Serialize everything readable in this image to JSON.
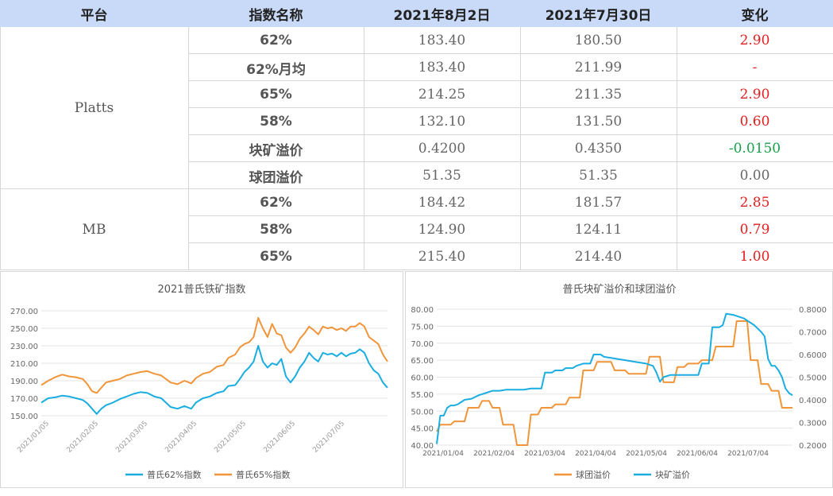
{
  "table": {
    "headers": [
      "平台",
      "指数名称",
      "2021年8月2日",
      "2021年7月30日",
      "变化"
    ],
    "groups": [
      {
        "platform": "Platts",
        "rows": [
          {
            "name": "62%",
            "d1": "183.40",
            "d2": "180.50",
            "change": "2.90",
            "trend": "pos"
          },
          {
            "name": "62%月均",
            "d1": "183.40",
            "d2": "211.99",
            "change": "-",
            "trend": "pos"
          },
          {
            "name": "65%",
            "d1": "214.25",
            "d2": "211.35",
            "change": "2.90",
            "trend": "pos"
          },
          {
            "name": "58%",
            "d1": "132.10",
            "d2": "131.50",
            "change": "0.60",
            "trend": "pos"
          },
          {
            "name": "块矿溢价",
            "d1": "0.4200",
            "d2": "0.4350",
            "change": "-0.0150",
            "trend": "neg"
          },
          {
            "name": "球团溢价",
            "d1": "51.35",
            "d2": "51.35",
            "change": "0.00",
            "trend": "zero"
          }
        ]
      },
      {
        "platform": "MB",
        "rows": [
          {
            "name": "62%",
            "d1": "184.42",
            "d2": "181.57",
            "change": "2.85",
            "trend": "pos"
          },
          {
            "name": "58%",
            "d1": "124.90",
            "d2": "124.11",
            "change": "0.79",
            "trend": "pos"
          },
          {
            "name": "65%",
            "d1": "215.40",
            "d2": "214.40",
            "change": "1.00",
            "trend": "pos"
          }
        ]
      }
    ]
  },
  "colors": {
    "blue": "#1aaee0",
    "orange": "#f0953a",
    "pos": "#e02020",
    "neg": "#16a04a",
    "header_bg": "#c9daf8"
  },
  "chart_data": [
    {
      "type": "line",
      "title": "2021普氏铁矿指数",
      "x_ticks": [
        "2021/01/05",
        "2021/02/05",
        "2021/03/05",
        "2021/04/05",
        "2021/05/05",
        "2021/06/05",
        "2021/07/05"
      ],
      "ylim": [
        150,
        270
      ],
      "y_ticks": [
        "150.00",
        "170.00",
        "190.00",
        "210.00",
        "230.00",
        "250.00",
        "270.00"
      ],
      "grid": true,
      "legend": "bottom",
      "series": [
        {
          "name": "普氏62%指数",
          "color": "#1aaee0",
          "points": [
            [
              0,
              165
            ],
            [
              3,
              170
            ],
            [
              6,
              171
            ],
            [
              9,
              173
            ],
            [
              12,
              172
            ],
            [
              15,
              170
            ],
            [
              18,
              168
            ],
            [
              20,
              164
            ],
            [
              22,
              158
            ],
            [
              24,
              152
            ],
            [
              26,
              158
            ],
            [
              28,
              162
            ],
            [
              31,
              165
            ],
            [
              34,
              169
            ],
            [
              37,
              172
            ],
            [
              40,
              175
            ],
            [
              43,
              177
            ],
            [
              46,
              176
            ],
            [
              49,
              172
            ],
            [
              52,
              170
            ],
            [
              54,
              165
            ],
            [
              56,
              160
            ],
            [
              59,
              158
            ],
            [
              62,
              161
            ],
            [
              65,
              158
            ],
            [
              67,
              165
            ],
            [
              70,
              170
            ],
            [
              73,
              172
            ],
            [
              76,
              176
            ],
            [
              79,
              178
            ],
            [
              81,
              184
            ],
            [
              84,
              185
            ],
            [
              86,
              192
            ],
            [
              88,
              200
            ],
            [
              90,
              205
            ],
            [
              92,
              212
            ],
            [
              94,
              230
            ],
            [
              96,
              212
            ],
            [
              98,
              205
            ],
            [
              100,
              210
            ],
            [
              102,
              208
            ],
            [
              104,
              215
            ],
            [
              106,
              195
            ],
            [
              108,
              188
            ],
            [
              110,
              195
            ],
            [
              112,
              205
            ],
            [
              114,
              212
            ],
            [
              116,
              222
            ],
            [
              118,
              216
            ],
            [
              120,
              212
            ],
            [
              122,
              222
            ],
            [
              124,
              220
            ],
            [
              126,
              221
            ],
            [
              128,
              218
            ],
            [
              130,
              222
            ],
            [
              132,
              218
            ],
            [
              134,
              221
            ],
            [
              136,
              222
            ],
            [
              138,
              226
            ],
            [
              140,
              222
            ],
            [
              142,
              210
            ],
            [
              144,
              202
            ],
            [
              146,
              198
            ],
            [
              148,
              188
            ],
            [
              150,
              182
            ]
          ]
        },
        {
          "name": "普氏65%指数",
          "color": "#f0953a",
          "points": [
            [
              0,
              185
            ],
            [
              3,
              190
            ],
            [
              6,
              194
            ],
            [
              9,
              197
            ],
            [
              12,
              195
            ],
            [
              15,
              194
            ],
            [
              18,
              192
            ],
            [
              20,
              186
            ],
            [
              22,
              178
            ],
            [
              24,
              176
            ],
            [
              26,
              182
            ],
            [
              28,
              188
            ],
            [
              31,
              190
            ],
            [
              34,
              192
            ],
            [
              37,
              196
            ],
            [
              40,
              198
            ],
            [
              43,
              200
            ],
            [
              46,
              201
            ],
            [
              49,
              198
            ],
            [
              52,
              196
            ],
            [
              54,
              192
            ],
            [
              56,
              188
            ],
            [
              59,
              186
            ],
            [
              62,
              190
            ],
            [
              65,
              187
            ],
            [
              67,
              193
            ],
            [
              70,
              198
            ],
            [
              73,
              200
            ],
            [
              76,
              206
            ],
            [
              79,
              208
            ],
            [
              81,
              216
            ],
            [
              84,
              220
            ],
            [
              86,
              228
            ],
            [
              88,
              232
            ],
            [
              90,
              234
            ],
            [
              92,
              240
            ],
            [
              94,
              262
            ],
            [
              96,
              250
            ],
            [
              98,
              240
            ],
            [
              100,
              255
            ],
            [
              102,
              244
            ],
            [
              104,
              242
            ],
            [
              106,
              228
            ],
            [
              108,
              222
            ],
            [
              110,
              228
            ],
            [
              112,
              238
            ],
            [
              114,
              244
            ],
            [
              116,
              252
            ],
            [
              118,
              248
            ],
            [
              120,
              243
            ],
            [
              122,
              252
            ],
            [
              124,
              250
            ],
            [
              126,
              251
            ],
            [
              128,
              248
            ],
            [
              130,
              250
            ],
            [
              132,
              247
            ],
            [
              134,
              252
            ],
            [
              136,
              252
            ],
            [
              138,
              256
            ],
            [
              140,
              252
            ],
            [
              142,
              240
            ],
            [
              144,
              236
            ],
            [
              146,
              232
            ],
            [
              148,
              220
            ],
            [
              150,
              212
            ]
          ]
        }
      ]
    },
    {
      "type": "line",
      "title": "普氏块矿溢价和球团溢价",
      "x_ticks": [
        "2021/01/04",
        "2021/02/04",
        "2021/03/04",
        "2021/04/04",
        "2021/05/04",
        "2021/06/04",
        "2021/07/04"
      ],
      "ylim_left": [
        40,
        80
      ],
      "y_ticks_left": [
        "40.00",
        "45.00",
        "50.00",
        "55.00",
        "60.00",
        "65.00",
        "70.00",
        "75.00",
        "80.00"
      ],
      "ylim_right": [
        0.2,
        0.8
      ],
      "y_ticks_right": [
        "0.2000",
        "0.3000",
        "0.4000",
        "0.5000",
        "0.6000",
        "0.7000",
        "0.8000"
      ],
      "grid": true,
      "legend": "bottom",
      "series": [
        {
          "name": "球团溢价",
          "axis": "left",
          "color": "#f0953a",
          "points": [
            [
              0,
              44
            ],
            [
              1,
              46
            ],
            [
              4,
              46
            ],
            [
              5,
              47
            ],
            [
              8,
              47
            ],
            [
              9,
              51
            ],
            [
              12,
              51
            ],
            [
              13,
              53
            ],
            [
              15,
              53
            ],
            [
              16,
              51
            ],
            [
              18,
              51
            ],
            [
              19,
              46
            ],
            [
              22,
              46
            ],
            [
              23,
              40
            ],
            [
              26,
              40
            ],
            [
              27,
              49
            ],
            [
              29,
              49
            ],
            [
              30,
              51
            ],
            [
              33,
              51
            ],
            [
              34,
              52
            ],
            [
              37,
              52
            ],
            [
              38,
              54
            ],
            [
              41,
              54
            ],
            [
              42,
              62
            ],
            [
              45,
              62
            ],
            [
              46,
              64.5
            ],
            [
              50,
              64.5
            ],
            [
              51,
              62
            ],
            [
              54,
              62
            ],
            [
              55,
              61
            ],
            [
              60,
              61
            ],
            [
              61,
              66
            ],
            [
              64,
              66
            ],
            [
              65,
              58.5
            ],
            [
              68,
              58.5
            ],
            [
              69,
              63
            ],
            [
              71,
              63
            ],
            [
              72,
              64
            ],
            [
              75,
              64
            ],
            [
              76,
              65
            ],
            [
              79,
              65
            ],
            [
              80,
              69
            ],
            [
              85,
              69
            ],
            [
              86,
              76.5
            ],
            [
              89,
              76.5
            ],
            [
              90,
              65
            ],
            [
              92,
              65
            ],
            [
              93,
              58
            ],
            [
              95,
              58
            ],
            [
              96,
              56
            ],
            [
              98,
              56
            ],
            [
              99,
              51
            ],
            [
              102,
              51
            ]
          ]
        },
        {
          "name": "块矿溢价",
          "axis": "right",
          "color": "#1aaee0",
          "points": [
            [
              0,
              0.205
            ],
            [
              1,
              0.33
            ],
            [
              2,
              0.33
            ],
            [
              3,
              0.365
            ],
            [
              4,
              0.375
            ],
            [
              5,
              0.375
            ],
            [
              6,
              0.38
            ],
            [
              7,
              0.39
            ],
            [
              8,
              0.4
            ],
            [
              10,
              0.405
            ],
            [
              12,
              0.42
            ],
            [
              14,
              0.43
            ],
            [
              16,
              0.44
            ],
            [
              18,
              0.44
            ],
            [
              20,
              0.445
            ],
            [
              25,
              0.445
            ],
            [
              27,
              0.45
            ],
            [
              30,
              0.45
            ],
            [
              31,
              0.52
            ],
            [
              33,
              0.52
            ],
            [
              34,
              0.53
            ],
            [
              36,
              0.53
            ],
            [
              37,
              0.54
            ],
            [
              39,
              0.54
            ],
            [
              40,
              0.55
            ],
            [
              42,
              0.56
            ],
            [
              44,
              0.56
            ],
            [
              45,
              0.6
            ],
            [
              47,
              0.6
            ],
            [
              48,
              0.59
            ],
            [
              50,
              0.585
            ],
            [
              52,
              0.58
            ],
            [
              54,
              0.575
            ],
            [
              56,
              0.57
            ],
            [
              58,
              0.565
            ],
            [
              60,
              0.56
            ],
            [
              62,
              0.55
            ],
            [
              63,
              0.52
            ],
            [
              64,
              0.48
            ],
            [
              65,
              0.5
            ],
            [
              67,
              0.51
            ],
            [
              68,
              0.51
            ],
            [
              74,
              0.51
            ],
            [
              75,
              0.51
            ],
            [
              76,
              0.56
            ],
            [
              78,
              0.56
            ],
            [
              79,
              0.72
            ],
            [
              81,
              0.72
            ],
            [
              82,
              0.73
            ],
            [
              83,
              0.78
            ],
            [
              85,
              0.775
            ],
            [
              86,
              0.77
            ],
            [
              88,
              0.76
            ],
            [
              90,
              0.74
            ],
            [
              91,
              0.73
            ],
            [
              93,
              0.7
            ],
            [
              94,
              0.68
            ],
            [
              95,
              0.58
            ],
            [
              96,
              0.55
            ],
            [
              97,
              0.55
            ],
            [
              98,
              0.53
            ],
            [
              99,
              0.5
            ],
            [
              100,
              0.45
            ],
            [
              101,
              0.43
            ],
            [
              102,
              0.42
            ]
          ]
        }
      ]
    }
  ]
}
